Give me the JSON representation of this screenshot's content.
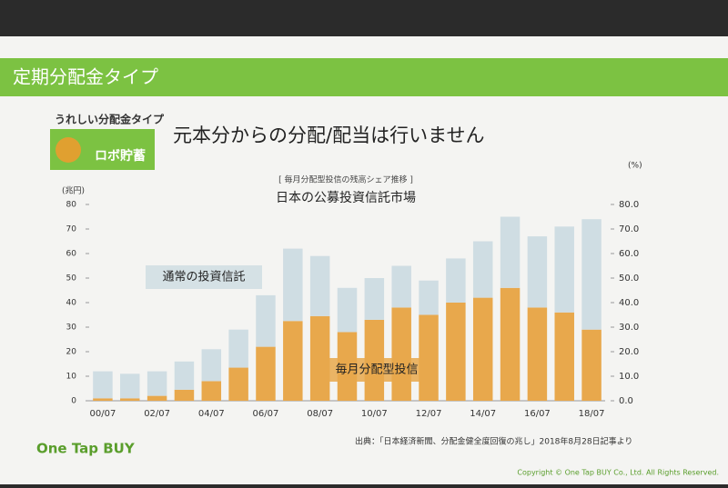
{
  "slide": {
    "header": "定期分配金タイプ",
    "badge": "うれしい分配金タイプ",
    "logo_text": "ロボ貯蓄",
    "heading": "元本分からの分配/配当は行いません",
    "source": "出典：「日本経済新聞、分配金健全度回復の兆し」2018年8月28日記事より",
    "brand": "One Tap BUY",
    "copyright": "Copyright © One Tap BUY Co., Ltd. All Rights Reserved."
  },
  "chart_data": {
    "type": "stacked_bar",
    "subtitle": "[ 毎月分配型投信の残高シェア推移 ]",
    "title": "日本の公募投資信託市場",
    "y_label": "(兆円)",
    "y2_label": "(%)",
    "categories": [
      "00/07",
      null,
      "02/07",
      null,
      "04/07",
      null,
      "06/07",
      null,
      "08/07",
      null,
      "10/07",
      null,
      "12/07",
      null,
      "14/07",
      null,
      "16/07",
      null,
      "18/07"
    ],
    "series": [
      {
        "name": "毎月分配型投信",
        "color": "#e8a84c",
        "values": [
          1,
          1,
          2,
          4.5,
          8,
          13.5,
          22,
          32.5,
          34.5,
          28,
          33,
          38,
          35,
          40,
          42,
          46,
          38,
          36,
          29
        ]
      },
      {
        "name": "通常の投資信託",
        "color": "#cfdde3",
        "values": [
          11,
          10,
          10,
          11.5,
          13,
          15.5,
          21,
          29.5,
          24.5,
          18,
          17,
          17,
          14,
          18,
          23,
          29,
          29,
          35,
          45
        ]
      }
    ],
    "ylim": [
      0,
      80
    ],
    "yticks": [
      0,
      10,
      20,
      30,
      40,
      50,
      60,
      70,
      80
    ],
    "y2lim": [
      0,
      80
    ],
    "y2ticks": [
      {
        "value": 0,
        "label": "0.0"
      },
      {
        "value": 10,
        "label": "10.0"
      },
      {
        "value": 20,
        "label": "20.0"
      },
      {
        "value": 30,
        "label": "30.0"
      },
      {
        "value": 40,
        "label": "40.0"
      },
      {
        "value": 50,
        "label": "50.0"
      },
      {
        "value": 60,
        "label": "60.0"
      },
      {
        "value": 70,
        "label": "70.0"
      },
      {
        "value": 80,
        "label": "80.0"
      }
    ]
  }
}
